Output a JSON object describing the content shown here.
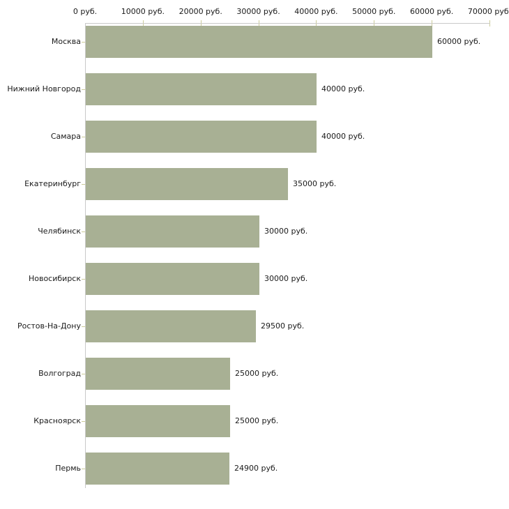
{
  "chart_data": {
    "type": "bar",
    "orientation": "horizontal",
    "title": "",
    "xlabel": "",
    "ylabel": "",
    "grid": false,
    "legend": false,
    "categories": [
      "Москва",
      "Нижний Новгород",
      "Самара",
      "Екатеринбург",
      "Челябинск",
      "Новосибирск",
      "Ростов-На-Дону",
      "Волгоград",
      "Красноярск",
      "Пермь"
    ],
    "values": [
      60000,
      40000,
      40000,
      35000,
      30000,
      30000,
      29500,
      25000,
      25000,
      24900
    ],
    "value_labels": [
      "60000 руб.",
      "40000 руб.",
      "40000 руб.",
      "35000 руб.",
      "30000 руб.",
      "30000 руб.",
      "29500 руб.",
      "25000 руб.",
      "25000 руб.",
      "24900 руб."
    ],
    "x_ticks": [
      0,
      10000,
      20000,
      30000,
      40000,
      50000,
      60000,
      70000
    ],
    "x_tick_labels": [
      "0 руб.",
      "10000 руб.",
      "20000 руб.",
      "30000 руб.",
      "40000 руб.",
      "50000 руб.",
      "60000 руб.",
      "70000 руб."
    ],
    "xlim": [
      0,
      70000
    ],
    "colors": {
      "bar": "#a8b094",
      "axis_line": "#c9c9c9",
      "tick_mark": "#cccc99",
      "text": "#1a1a1a",
      "background": "#ffffff"
    }
  }
}
